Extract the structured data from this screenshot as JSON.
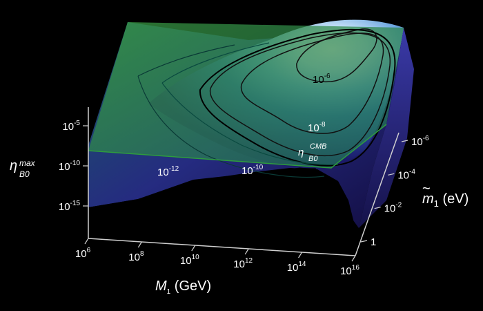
{
  "chart_data": {
    "type": "surface3d",
    "title": "",
    "x_axis": {
      "ticks": [
        {
          "base": "10",
          "exp": "6"
        },
        {
          "base": "10",
          "exp": "8"
        },
        {
          "base": "10",
          "exp": "10"
        },
        {
          "base": "10",
          "exp": "12"
        },
        {
          "base": "10",
          "exp": "14"
        },
        {
          "base": "10",
          "exp": "16"
        }
      ],
      "label_main": "M",
      "label_sub": "1",
      "label_unit": " (GeV)"
    },
    "y_axis": {
      "ticks": [
        {
          "base": "10",
          "exp": "-6"
        },
        {
          "base": "10",
          "exp": "-4"
        },
        {
          "base": "10",
          "exp": "-2"
        },
        {
          "base": "1",
          "exp": ""
        }
      ],
      "label_main": "m",
      "label_tilde": "~",
      "label_sub": "1",
      "label_unit": " (eV)"
    },
    "z_axis": {
      "ticks": [
        {
          "base": "10",
          "exp": "-5"
        },
        {
          "base": "10",
          "exp": "-10"
        },
        {
          "base": "10",
          "exp": "-15"
        }
      ],
      "label_main": "η",
      "label_sub": "B0",
      "label_sup": "max"
    },
    "contour_labels": [
      {
        "base": "10",
        "exp": "-6",
        "dark": true
      },
      {
        "base": "10",
        "exp": "-8",
        "dark": false
      },
      {
        "base": "10",
        "exp": "-10",
        "dark": false
      },
      {
        "base": "10",
        "exp": "-12",
        "dark": false
      }
    ],
    "cmb_label": {
      "main": "η",
      "sup": "CMB",
      "sub": "B0"
    },
    "colors": {
      "background": "#000000",
      "plane": "#2f8a3a",
      "surface_high": "#ffffff",
      "surface_mid": "#3a86c8",
      "surface_low": "#261a6e",
      "contour": "#111111"
    }
  }
}
